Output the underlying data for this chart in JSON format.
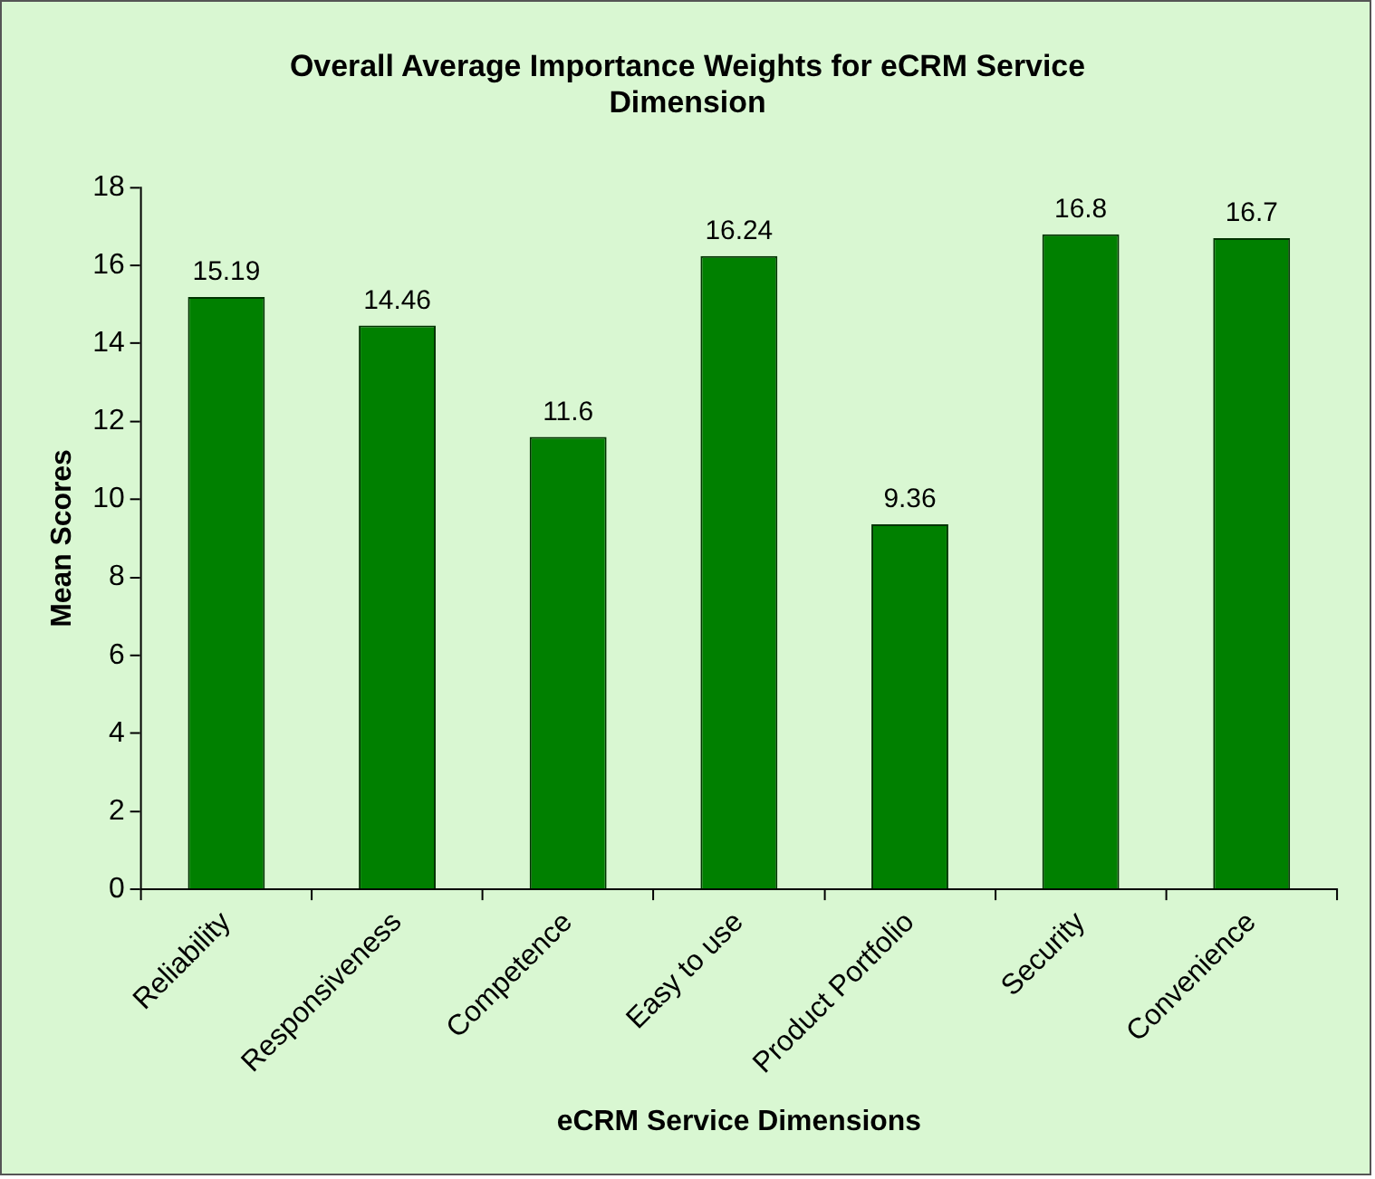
{
  "chart_data": {
    "type": "bar",
    "title": "Overall Average Importance Weights for eCRM Service Dimension",
    "xlabel": "eCRM Service Dimensions",
    "ylabel": "Mean Scores",
    "categories": [
      "Reliability",
      "Responsiveness",
      "Competence",
      "Easy to use",
      "Product Portfolio",
      "Security",
      "Convenience"
    ],
    "values": [
      15.19,
      14.46,
      11.6,
      16.24,
      9.36,
      16.8,
      16.7
    ],
    "color": "#008000",
    "ylim": [
      0,
      18
    ],
    "yticks": [
      0,
      2,
      4,
      6,
      8,
      10,
      12,
      14,
      16,
      18
    ],
    "grid": false,
    "legend": false,
    "data_labels": true
  }
}
